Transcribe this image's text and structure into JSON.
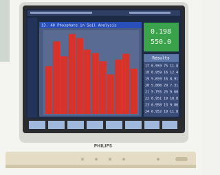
{
  "screen": {
    "green_box": {
      "line1": "0.198",
      "line2": "550.0"
    },
    "results": {
      "title": "Results",
      "rows": [
        "17 6.959 75 11.8",
        "18 6.959 16 12.4",
        "19 5.659 16 8.91",
        "20 5.808 29 7.31",
        "21 5.755 25 9.60",
        "22 6.951 19 10.8",
        "23 6.958 13 9.86",
        "24 6.952 19 11.8"
      ]
    },
    "brand": "PHILIPS"
  },
  "chart_data": {
    "type": "bar",
    "title": "13. 40  Phosphate in Soil Analysis",
    "categories": [
      null,
      null,
      null,
      null,
      null,
      null,
      null,
      null,
      null,
      null,
      null,
      null
    ],
    "values": [
      58,
      88,
      70,
      97,
      92,
      78,
      74,
      64,
      48,
      66,
      73,
      55
    ],
    "color": "#d8332a",
    "ylim": [
      0,
      100
    ]
  }
}
